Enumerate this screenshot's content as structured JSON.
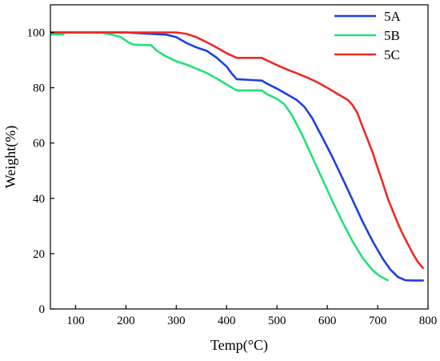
{
  "chart_data": {
    "type": "line",
    "title": "",
    "xlabel": "Temp(°C)",
    "ylabel": "Weight(%)",
    "xlim": [
      50,
      800
    ],
    "ylim": [
      0,
      110
    ],
    "x_ticks": [
      100,
      200,
      300,
      400,
      500,
      600,
      700,
      800
    ],
    "y_ticks": [
      0,
      20,
      40,
      60,
      80,
      100
    ],
    "grid": false,
    "legend_position": "top-right",
    "series": [
      {
        "name": "5A",
        "color": "#1f3fe0",
        "points": [
          [
            50,
            100
          ],
          [
            100,
            100
          ],
          [
            150,
            100
          ],
          [
            200,
            100
          ],
          [
            240,
            99.6
          ],
          [
            280,
            99.2
          ],
          [
            300,
            98.3
          ],
          [
            320,
            96.2
          ],
          [
            340,
            94.6
          ],
          [
            360,
            93.4
          ],
          [
            380,
            90.9
          ],
          [
            400,
            87.7
          ],
          [
            410,
            85.2
          ],
          [
            420,
            83.1
          ],
          [
            440,
            82.9
          ],
          [
            470,
            82.6
          ],
          [
            480,
            81.5
          ],
          [
            500,
            79.7
          ],
          [
            520,
            77.6
          ],
          [
            540,
            75.5
          ],
          [
            555,
            73.0
          ],
          [
            570,
            69.0
          ],
          [
            590,
            62.1
          ],
          [
            610,
            55.0
          ],
          [
            630,
            47.3
          ],
          [
            650,
            39.5
          ],
          [
            670,
            31.6
          ],
          [
            690,
            24.5
          ],
          [
            710,
            18.2
          ],
          [
            725,
            14.3
          ],
          [
            740,
            11.6
          ],
          [
            755,
            10.4
          ],
          [
            770,
            10.3
          ],
          [
            790,
            10.3
          ]
        ]
      },
      {
        "name": "5B",
        "color": "#22e07a",
        "points": [
          [
            50,
            99.3
          ],
          [
            75,
            99.3
          ],
          [
            78,
            100
          ],
          [
            150,
            100
          ],
          [
            170,
            99.3
          ],
          [
            190,
            98.3
          ],
          [
            205,
            96.4
          ],
          [
            215,
            95.6
          ],
          [
            250,
            95.4
          ],
          [
            260,
            93.6
          ],
          [
            280,
            91.3
          ],
          [
            300,
            89.6
          ],
          [
            320,
            88.4
          ],
          [
            340,
            86.9
          ],
          [
            360,
            85.4
          ],
          [
            380,
            83.4
          ],
          [
            400,
            81.2
          ],
          [
            420,
            79.0
          ],
          [
            440,
            79.0
          ],
          [
            470,
            79.0
          ],
          [
            480,
            77.7
          ],
          [
            500,
            76.0
          ],
          [
            515,
            74.0
          ],
          [
            530,
            70.0
          ],
          [
            550,
            63.0
          ],
          [
            570,
            55.0
          ],
          [
            590,
            47.0
          ],
          [
            610,
            39.0
          ],
          [
            630,
            31.5
          ],
          [
            650,
            24.5
          ],
          [
            670,
            18.5
          ],
          [
            690,
            14.0
          ],
          [
            705,
            11.8
          ],
          [
            720,
            10.4
          ]
        ]
      },
      {
        "name": "5C",
        "color": "#ee2a24",
        "points": [
          [
            50,
            100
          ],
          [
            100,
            100
          ],
          [
            200,
            100
          ],
          [
            280,
            100
          ],
          [
            300,
            100
          ],
          [
            320,
            99.5
          ],
          [
            340,
            98.3
          ],
          [
            360,
            96.5
          ],
          [
            380,
            94.6
          ],
          [
            400,
            92.5
          ],
          [
            420,
            90.8
          ],
          [
            440,
            90.8
          ],
          [
            470,
            90.8
          ],
          [
            480,
            89.9
          ],
          [
            500,
            88.2
          ],
          [
            520,
            86.6
          ],
          [
            540,
            85.2
          ],
          [
            560,
            83.7
          ],
          [
            580,
            82.0
          ],
          [
            600,
            80.0
          ],
          [
            620,
            77.8
          ],
          [
            640,
            75.7
          ],
          [
            650,
            73.8
          ],
          [
            660,
            70.8
          ],
          [
            670,
            65.9
          ],
          [
            680,
            61.3
          ],
          [
            690,
            56.6
          ],
          [
            700,
            51.0
          ],
          [
            710,
            45.7
          ],
          [
            720,
            40.0
          ],
          [
            730,
            35.5
          ],
          [
            740,
            31.0
          ],
          [
            750,
            27.0
          ],
          [
            760,
            23.5
          ],
          [
            770,
            20.0
          ],
          [
            780,
            17.0
          ],
          [
            790,
            14.8
          ]
        ]
      }
    ]
  }
}
